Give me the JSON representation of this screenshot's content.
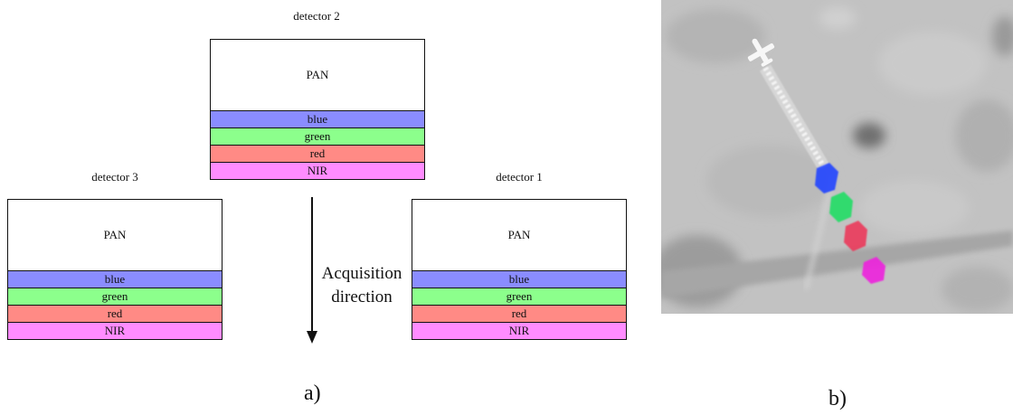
{
  "diagram": {
    "detectors": [
      {
        "title": "detector 2",
        "pan": "PAN",
        "bands": [
          "blue",
          "green",
          "red",
          "NIR"
        ]
      },
      {
        "title": "detector 3",
        "pan": "PAN",
        "bands": [
          "blue",
          "green",
          "red",
          "NIR"
        ]
      },
      {
        "title": "detector 1",
        "pan": "PAN",
        "bands": [
          "blue",
          "green",
          "red",
          "NIR"
        ]
      }
    ],
    "band_colors": {
      "blue": "#8a8cff",
      "green": "#8cff8c",
      "red": "#ff8a85",
      "NIR": "#ff8cff"
    },
    "acquisition_lines": [
      "Acquisition",
      "direction"
    ],
    "panel_a": "a)",
    "panel_b": "b)"
  },
  "photo": {
    "background": "#c2c2c2",
    "blob_colors": [
      "#2244ff",
      "#22dd66",
      "#ee3355",
      "#ee22dd"
    ]
  }
}
